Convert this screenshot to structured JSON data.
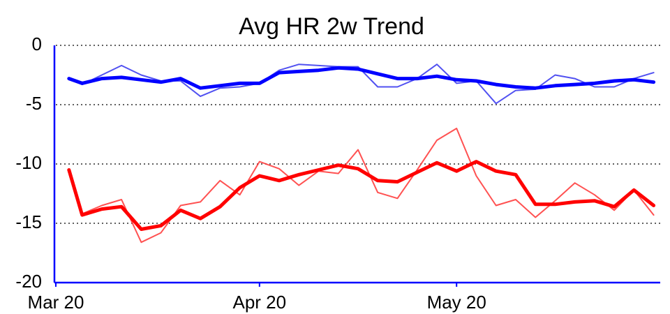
{
  "chart_data": {
    "type": "line",
    "title": "Avg HR 2w Trend",
    "x": [
      "Mar 22",
      "Mar 24",
      "Mar 27",
      "Mar 30",
      "Apr 2",
      "Apr 5",
      "Apr 8",
      "Apr 11",
      "Apr 14",
      "Apr 17",
      "Apr 20",
      "Apr 23",
      "Apr 26",
      "Apr 29",
      "May 2",
      "May 5",
      "May 8",
      "May 11",
      "May 14",
      "May 17",
      "May 20",
      "May 23",
      "May 26",
      "May 29",
      "Jun 1",
      "Jun 4",
      "Jun 7",
      "Jun 10",
      "Jun 13",
      "Jun 16",
      "Jun 19"
    ],
    "series": [
      {
        "color": "#3333ee",
        "width": 2,
        "values": [
          -2.8,
          -3.3,
          -2.5,
          -1.7,
          -2.5,
          -3.0,
          -3.0,
          -4.3,
          -3.6,
          -3.5,
          -3.2,
          -2.1,
          -1.6,
          -1.7,
          -1.8,
          -1.8,
          -3.5,
          -3.5,
          -2.8,
          -1.6,
          -3.2,
          -3.0,
          -4.9,
          -3.8,
          -3.7,
          -2.5,
          -2.8,
          -3.5,
          -3.5,
          -2.8,
          -2.3
        ]
      },
      {
        "color": "#0000ff",
        "width": 5,
        "values": [
          -2.8,
          -3.2,
          -2.8,
          -2.7,
          -2.9,
          -3.1,
          -2.8,
          -3.6,
          -3.4,
          -3.2,
          -3.2,
          -2.3,
          -2.2,
          -2.1,
          -1.9,
          -2.0,
          -2.4,
          -2.8,
          -2.8,
          -2.6,
          -2.9,
          -3.0,
          -3.3,
          -3.5,
          -3.6,
          -3.4,
          -3.3,
          -3.2,
          -3.0,
          -2.9,
          -3.1
        ]
      },
      {
        "color": "#ff3333",
        "width": 2,
        "values": [
          -10.5,
          -14.2,
          -13.5,
          -13.0,
          -16.6,
          -15.8,
          -13.5,
          -13.2,
          -11.4,
          -12.6,
          -9.8,
          -10.4,
          -11.8,
          -10.6,
          -10.8,
          -8.8,
          -12.4,
          -12.9,
          -10.5,
          -8.0,
          -7.0,
          -11.0,
          -13.5,
          -13.0,
          -14.5,
          -13.1,
          -11.6,
          -12.6,
          -13.9,
          -12.2,
          -14.3
        ]
      },
      {
        "color": "#ff0000",
        "width": 5,
        "values": [
          -10.5,
          -14.3,
          -13.8,
          -13.6,
          -15.5,
          -15.2,
          -13.9,
          -14.6,
          -13.6,
          -12.0,
          -11.0,
          -11.4,
          -10.9,
          -10.5,
          -10.1,
          -10.4,
          -11.4,
          -11.5,
          -10.7,
          -9.9,
          -10.6,
          -9.8,
          -10.6,
          -10.9,
          -13.4,
          -13.4,
          -13.2,
          -13.1,
          -13.6,
          -12.2,
          -13.5
        ]
      }
    ],
    "xlim": [
      "Mar 20",
      "Jun 20"
    ],
    "xticks": [
      "Mar 20",
      "Apr 20",
      "May 20"
    ],
    "ylim": [
      -20,
      0
    ],
    "yticks": [
      0,
      -5,
      -10,
      -15,
      -20
    ],
    "grid": true,
    "axis_color": "#0000ff"
  }
}
